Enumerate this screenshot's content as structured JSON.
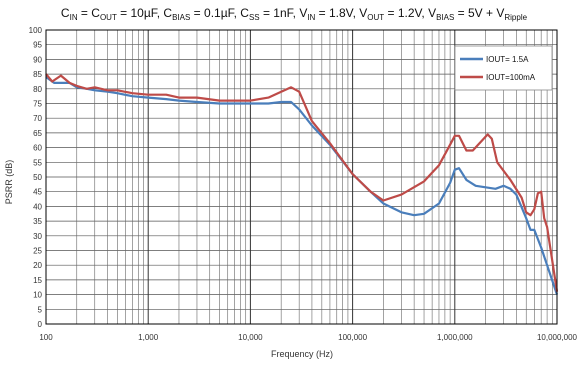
{
  "chart_data": {
    "type": "line",
    "title_parts": [
      {
        "t": "C",
        "sub": false
      },
      {
        "t": "IN",
        "sub": true
      },
      {
        "t": " = C",
        "sub": false
      },
      {
        "t": "OUT",
        "sub": true
      },
      {
        "t": " = 10µF, C",
        "sub": false
      },
      {
        "t": "BIAS",
        "sub": true
      },
      {
        "t": " = 0.1µF, C",
        "sub": false
      },
      {
        "t": "SS",
        "sub": true
      },
      {
        "t": " = 1nF, V",
        "sub": false
      },
      {
        "t": "IN",
        "sub": true
      },
      {
        "t": " = 1.8V, V",
        "sub": false
      },
      {
        "t": "OUT",
        "sub": true
      },
      {
        "t": " = 1.2V, V",
        "sub": false
      },
      {
        "t": "BIAS",
        "sub": true
      },
      {
        "t": " = 5V + V",
        "sub": false
      },
      {
        "t": "Ripple",
        "sub": true
      }
    ],
    "xlabel": "Frequency (Hz)",
    "ylabel": "PSRR (dB)",
    "x_scale": "log",
    "xlim": [
      100,
      10000000
    ],
    "ylim": [
      0,
      100
    ],
    "x_ticks": [
      100,
      1000,
      10000,
      100000,
      1000000,
      10000000
    ],
    "x_tick_labels": [
      "100",
      "1,000",
      "10,000",
      "100,000",
      "1,000,000",
      "10,000,000"
    ],
    "y_ticks": [
      0,
      5,
      10,
      15,
      20,
      25,
      30,
      35,
      40,
      45,
      50,
      55,
      60,
      65,
      70,
      75,
      80,
      85,
      90,
      95,
      100
    ],
    "y_tick_labels": [
      "0",
      "5",
      "10",
      "15",
      "20",
      "25",
      "30",
      "35",
      "40",
      "45",
      "50",
      "55",
      "60",
      "65",
      "70",
      "75",
      "80",
      "85",
      "90",
      "95",
      "100"
    ],
    "grid": true,
    "legend_position": "top-right",
    "series": [
      {
        "name": "IOUT= 1.5A",
        "color": "#4a7ebb",
        "points": [
          [
            100,
            84
          ],
          [
            120,
            82
          ],
          [
            140,
            82
          ],
          [
            170,
            82
          ],
          [
            200,
            80.5
          ],
          [
            250,
            80
          ],
          [
            300,
            79.5
          ],
          [
            400,
            79
          ],
          [
            500,
            78.5
          ],
          [
            700,
            77.5
          ],
          [
            1000,
            77
          ],
          [
            1500,
            76.5
          ],
          [
            2000,
            76
          ],
          [
            3000,
            75.5
          ],
          [
            5000,
            75
          ],
          [
            7000,
            75
          ],
          [
            10000,
            75
          ],
          [
            15000,
            75
          ],
          [
            20000,
            75.5
          ],
          [
            25000,
            75.5
          ],
          [
            30000,
            73
          ],
          [
            40000,
            67.5
          ],
          [
            60000,
            61
          ],
          [
            100000,
            51
          ],
          [
            150000,
            45
          ],
          [
            200000,
            41
          ],
          [
            300000,
            38
          ],
          [
            400000,
            37
          ],
          [
            500000,
            37.5
          ],
          [
            700000,
            41
          ],
          [
            900000,
            48
          ],
          [
            1000000,
            52.5
          ],
          [
            1100000,
            53
          ],
          [
            1300000,
            49
          ],
          [
            1600000,
            47
          ],
          [
            2000000,
            46.5
          ],
          [
            2500000,
            46
          ],
          [
            3000000,
            47
          ],
          [
            3500000,
            46
          ],
          [
            4000000,
            44
          ],
          [
            5000000,
            36
          ],
          [
            5500000,
            32
          ],
          [
            6000000,
            32
          ],
          [
            7000000,
            26
          ],
          [
            8000000,
            20
          ],
          [
            10000000,
            10
          ]
        ]
      },
      {
        "name": "IOUT=100mA",
        "color": "#be4b48",
        "points": [
          [
            100,
            85
          ],
          [
            115,
            82.5
          ],
          [
            140,
            84.5
          ],
          [
            170,
            82
          ],
          [
            200,
            81
          ],
          [
            250,
            80
          ],
          [
            300,
            80.5
          ],
          [
            400,
            79.5
          ],
          [
            500,
            79.5
          ],
          [
            700,
            78.5
          ],
          [
            1000,
            78
          ],
          [
            1500,
            78
          ],
          [
            2000,
            77
          ],
          [
            3000,
            77
          ],
          [
            5000,
            76
          ],
          [
            7000,
            76
          ],
          [
            10000,
            76
          ],
          [
            15000,
            77
          ],
          [
            20000,
            79
          ],
          [
            25000,
            80.5
          ],
          [
            30000,
            79
          ],
          [
            40000,
            69
          ],
          [
            60000,
            61.5
          ],
          [
            100000,
            51
          ],
          [
            150000,
            45
          ],
          [
            200000,
            42
          ],
          [
            300000,
            44
          ],
          [
            500000,
            48.5
          ],
          [
            700000,
            54
          ],
          [
            900000,
            61
          ],
          [
            1000000,
            64
          ],
          [
            1100000,
            64
          ],
          [
            1300000,
            59
          ],
          [
            1500000,
            59
          ],
          [
            1800000,
            62
          ],
          [
            2100000,
            64.5
          ],
          [
            2300000,
            63
          ],
          [
            2600000,
            55
          ],
          [
            3500000,
            49
          ],
          [
            4500000,
            43
          ],
          [
            5000000,
            38
          ],
          [
            5500000,
            37
          ],
          [
            6000000,
            39
          ],
          [
            6500000,
            44.5
          ],
          [
            7000000,
            45
          ],
          [
            7500000,
            36
          ],
          [
            8000000,
            33
          ],
          [
            10000000,
            11
          ]
        ]
      }
    ]
  }
}
